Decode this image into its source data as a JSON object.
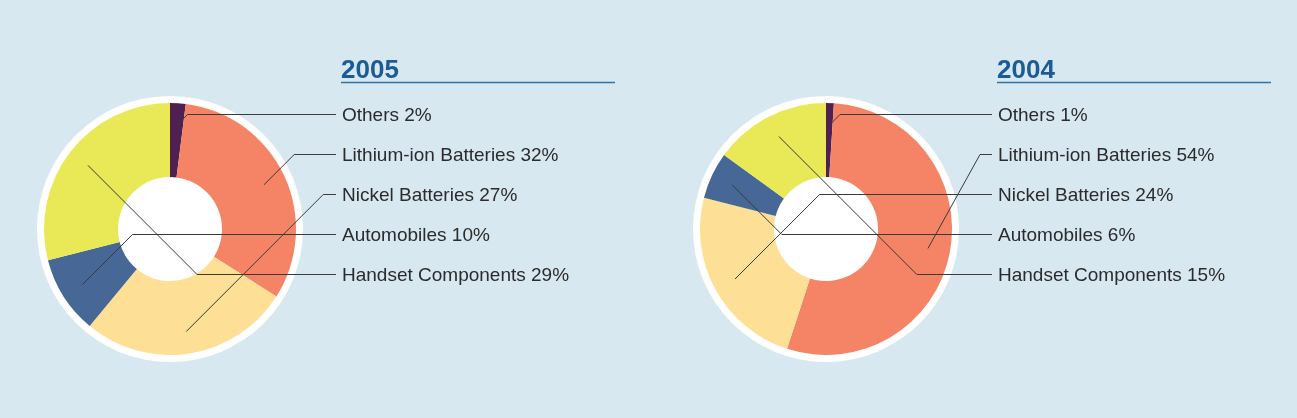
{
  "chart_data": [
    {
      "type": "donut",
      "title": "2005",
      "categories": [
        "Others",
        "Lithium-ion Batteries",
        "Nickel Batteries",
        "Automobiles",
        "Handset Components"
      ],
      "values": [
        2,
        32,
        27,
        10,
        29
      ],
      "value_labels": [
        "2%",
        "32%",
        "27%",
        "10%",
        "29%"
      ],
      "colors": [
        "#4f2150",
        "#f58466",
        "#fde095",
        "#476796",
        "#e9e857"
      ]
    },
    {
      "type": "donut",
      "title": "2004",
      "categories": [
        "Others",
        "Lithium-ion Batteries",
        "Nickel Batteries",
        "Automobiles",
        "Handset Components"
      ],
      "values": [
        1,
        54,
        24,
        6,
        15
      ],
      "value_labels": [
        "1%",
        "54%",
        "24%",
        "6%",
        "15%"
      ],
      "colors": [
        "#4f2150",
        "#f58466",
        "#fde095",
        "#476796",
        "#e9e857"
      ]
    }
  ]
}
